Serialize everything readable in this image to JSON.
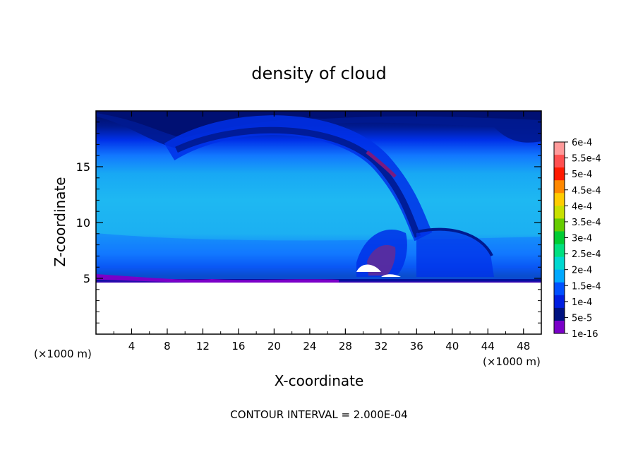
{
  "chart_data": {
    "type": "heatmap",
    "title": "density of cloud",
    "xlabel": "X-coordinate",
    "ylabel": "Z-coordinate",
    "x_unit_left": "(×1000 m)",
    "x_unit_right": "(×1000 m)",
    "xlim": [
      0,
      50
    ],
    "ylim": [
      0,
      20
    ],
    "x_ticks": [
      4,
      8,
      12,
      16,
      20,
      24,
      28,
      32,
      36,
      40,
      44,
      48
    ],
    "y_ticks": [
      5,
      10,
      15
    ],
    "footer": "CONTOUR INTERVAL = 2.000E-04",
    "colorbar": {
      "labels": [
        "6e-4",
        "5.5e-4",
        "5e-4",
        "4.5e-4",
        "4e-4",
        "3.5e-4",
        "3e-4",
        "2.5e-4",
        "2e-4",
        "1.5e-4",
        "1e-4",
        "5e-5",
        "1e-16"
      ],
      "colors": [
        "#ff9a9a",
        "#ff5050",
        "#ff1a00",
        "#ff8800",
        "#ffcc00",
        "#c8e000",
        "#66cc00",
        "#00cc33",
        "#00e080",
        "#00d8d0",
        "#00a8ff",
        "#0050ff",
        "#001ee0",
        "#001280",
        "#7a00c8"
      ]
    },
    "field_levels": {
      "1e-16": "#7a00c8",
      "5e-5": "#001a90",
      "1e-4": "#0030e8",
      "1.5e-4": "#1278ff",
      "2e-4": "#1eb8f2"
    }
  }
}
